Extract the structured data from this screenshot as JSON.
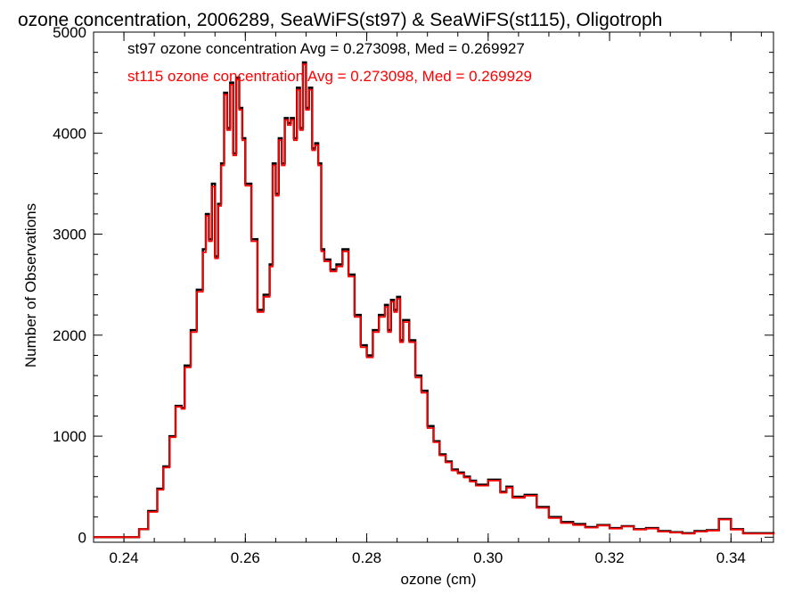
{
  "chart_data": {
    "type": "line",
    "title": "ozone concentration, 2006289, SeaWiFS(st97) & SeaWiFS(st115), Oligotroph",
    "xlabel": "ozone (cm)",
    "ylabel": "Number of Observations",
    "xlim": [
      0.235,
      0.347
    ],
    "ylim": [
      -50,
      5000
    ],
    "xticks": [
      0.24,
      0.26,
      0.28,
      0.3,
      0.32,
      0.34
    ],
    "xtick_labels": [
      "0.24",
      "0.26",
      "0.28",
      "0.30",
      "0.32",
      "0.34"
    ],
    "yticks": [
      0,
      1000,
      2000,
      3000,
      4000,
      5000
    ],
    "ytick_labels": [
      "0",
      "1000",
      "2000",
      "3000",
      "4000",
      "5000"
    ],
    "grid": false,
    "legend_position": "top-left",
    "annotations": [
      {
        "text": "st97 ozone concentration Avg = 0.273098, Med = 0.269927",
        "color": "#000000"
      },
      {
        "text": "st115 ozone concentration Avg = 0.273098, Med = 0.269929",
        "color": "#ff0000"
      }
    ],
    "series": [
      {
        "color": "#000000",
        "x": [
          0.235,
          0.241,
          0.2425,
          0.244,
          0.2455,
          0.2465,
          0.2475,
          0.2485,
          0.2495,
          0.25,
          0.251,
          0.252,
          0.253,
          0.2535,
          0.254,
          0.2545,
          0.255,
          0.2555,
          0.256,
          0.2565,
          0.257,
          0.2575,
          0.258,
          0.2585,
          0.259,
          0.2595,
          0.26,
          0.261,
          0.262,
          0.263,
          0.264,
          0.2645,
          0.265,
          0.2655,
          0.266,
          0.2665,
          0.267,
          0.2675,
          0.268,
          0.2685,
          0.269,
          0.2695,
          0.27,
          0.2705,
          0.271,
          0.2715,
          0.272,
          0.2725,
          0.273,
          0.274,
          0.275,
          0.276,
          0.277,
          0.278,
          0.279,
          0.28,
          0.281,
          0.282,
          0.283,
          0.2835,
          0.284,
          0.2845,
          0.285,
          0.2855,
          0.286,
          0.287,
          0.288,
          0.289,
          0.29,
          0.291,
          0.292,
          0.293,
          0.294,
          0.295,
          0.296,
          0.297,
          0.298,
          0.3,
          0.302,
          0.303,
          0.304,
          0.306,
          0.308,
          0.31,
          0.312,
          0.314,
          0.316,
          0.318,
          0.32,
          0.322,
          0.324,
          0.326,
          0.328,
          0.33,
          0.332,
          0.334,
          0.336,
          0.338,
          0.34,
          0.342,
          0.347
        ],
        "y": [
          0,
          0,
          80,
          260,
          480,
          700,
          1000,
          1300,
          1280,
          1700,
          2050,
          2450,
          2850,
          3200,
          2950,
          3500,
          2780,
          3300,
          3700,
          4400,
          4050,
          4500,
          3800,
          4550,
          4250,
          3950,
          3500,
          2950,
          2250,
          2400,
          2700,
          3700,
          3400,
          3950,
          3700,
          4150,
          4100,
          4150,
          3950,
          4450,
          4050,
          4700,
          4250,
          4450,
          3850,
          3900,
          3700,
          2850,
          2750,
          2650,
          2700,
          2850,
          2600,
          2200,
          1900,
          1800,
          2050,
          2200,
          2300,
          2050,
          2350,
          2250,
          2380,
          1950,
          2150,
          1950,
          1600,
          1450,
          1100,
          950,
          820,
          750,
          670,
          640,
          600,
          560,
          520,
          570,
          450,
          500,
          400,
          420,
          300,
          200,
          150,
          130,
          100,
          120,
          90,
          110,
          80,
          90,
          60,
          50,
          40,
          60,
          70,
          180,
          80,
          40,
          30
        ]
      },
      {
        "color": "#ff0000",
        "x": [
          0.235,
          0.241,
          0.2425,
          0.244,
          0.2455,
          0.2465,
          0.2475,
          0.2485,
          0.2495,
          0.25,
          0.251,
          0.252,
          0.253,
          0.2535,
          0.254,
          0.2545,
          0.255,
          0.2555,
          0.256,
          0.2565,
          0.257,
          0.2575,
          0.258,
          0.2585,
          0.259,
          0.2595,
          0.26,
          0.261,
          0.262,
          0.263,
          0.264,
          0.2645,
          0.265,
          0.2655,
          0.266,
          0.2665,
          0.267,
          0.2675,
          0.268,
          0.2685,
          0.269,
          0.2695,
          0.27,
          0.2705,
          0.271,
          0.2715,
          0.272,
          0.2725,
          0.273,
          0.274,
          0.275,
          0.276,
          0.277,
          0.278,
          0.279,
          0.28,
          0.281,
          0.282,
          0.283,
          0.2835,
          0.284,
          0.2845,
          0.285,
          0.2855,
          0.286,
          0.287,
          0.288,
          0.289,
          0.29,
          0.291,
          0.292,
          0.293,
          0.294,
          0.295,
          0.296,
          0.297,
          0.298,
          0.3,
          0.302,
          0.303,
          0.304,
          0.306,
          0.308,
          0.31,
          0.312,
          0.314,
          0.316,
          0.318,
          0.32,
          0.322,
          0.324,
          0.326,
          0.328,
          0.33,
          0.332,
          0.334,
          0.336,
          0.338,
          0.34,
          0.342,
          0.347
        ],
        "y": [
          0,
          0,
          80,
          250,
          470,
          690,
          990,
          1290,
          1270,
          1680,
          2030,
          2430,
          2820,
          3180,
          2930,
          3470,
          2760,
          3280,
          3680,
          4380,
          4030,
          4480,
          3780,
          4530,
          4230,
          3930,
          3480,
          2930,
          2230,
          2380,
          2680,
          3680,
          3380,
          3930,
          3680,
          4130,
          4080,
          4130,
          3930,
          4430,
          4030,
          4680,
          4230,
          4430,
          3830,
          3880,
          3680,
          2830,
          2730,
          2630,
          2680,
          2830,
          2580,
          2180,
          1880,
          1780,
          2030,
          2180,
          2280,
          2030,
          2330,
          2230,
          2360,
          1930,
          2130,
          1930,
          1580,
          1430,
          1080,
          940,
          810,
          740,
          660,
          630,
          590,
          550,
          510,
          560,
          440,
          490,
          390,
          410,
          290,
          190,
          140,
          120,
          95,
          115,
          85,
          105,
          75,
          85,
          55,
          45,
          35,
          55,
          65,
          175,
          75,
          35,
          25
        ]
      }
    ]
  }
}
